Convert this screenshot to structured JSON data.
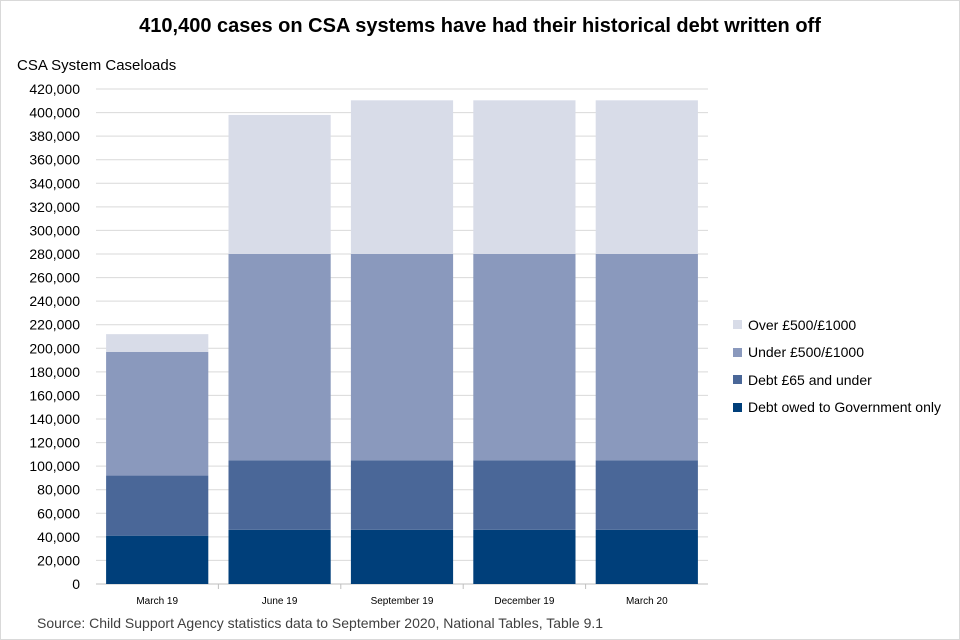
{
  "chart_data": {
    "type": "bar",
    "stacked": true,
    "title": "410,400 cases on CSA systems have had their historical debt written off",
    "ylabel": "CSA System Caseloads",
    "xlabel": "",
    "ylim": [
      0,
      420000
    ],
    "ytick_step": 20000,
    "yticks": [
      "0",
      "20,000",
      "40,000",
      "60,000",
      "80,000",
      "100,000",
      "120,000",
      "140,000",
      "160,000",
      "180,000",
      "200,000",
      "220,000",
      "240,000",
      "260,000",
      "280,000",
      "300,000",
      "320,000",
      "340,000",
      "360,000",
      "380,000",
      "400,000",
      "420,000"
    ],
    "grid": true,
    "legend_position": "right",
    "categories": [
      "March 19",
      "June 19",
      "September 19",
      "December 19",
      "March 20"
    ],
    "series": [
      {
        "name": "Debt owed to Government only",
        "color": "#003f7a",
        "values": [
          41000,
          46000,
          46000,
          46000,
          46000
        ]
      },
      {
        "name": "Debt £65 and under",
        "color": "#4a6798",
        "values": [
          51000,
          59000,
          59000,
          59000,
          59000
        ]
      },
      {
        "name": "Under £500/£1000",
        "color": "#8a99bd",
        "values": [
          105000,
          175000,
          175000,
          175000,
          175000
        ]
      },
      {
        "name": "Over £500/£1000",
        "color": "#d8dce8",
        "values": [
          15000,
          118000,
          130400,
          130400,
          130400
        ]
      }
    ],
    "source": "Source: Child Support Agency statistics data to September 2020, National Tables, Table 9.1"
  }
}
